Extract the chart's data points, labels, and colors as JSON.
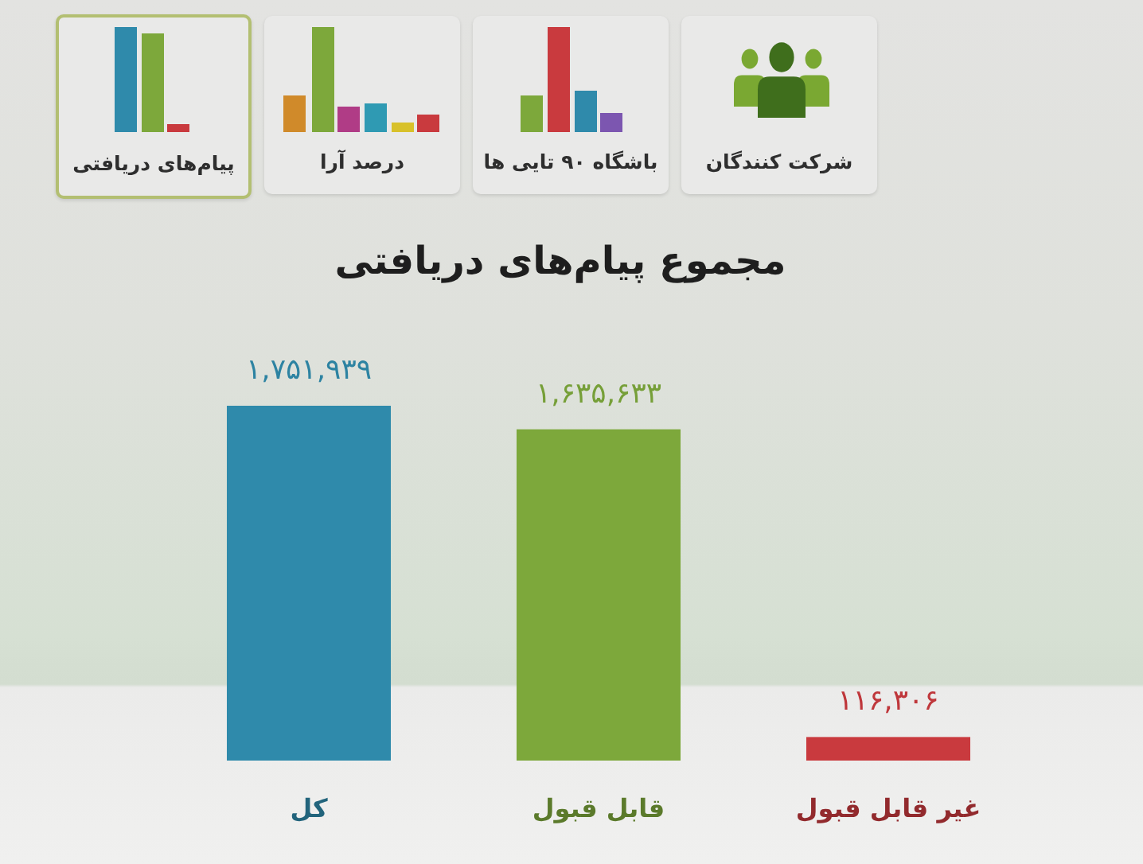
{
  "chart_data": {
    "type": "bar",
    "title": "مجموع پیام‌های دریافتی",
    "categories": [
      "کل",
      "قابل قبول",
      "غیر قابل قبول"
    ],
    "values": [
      1751939,
      1635633,
      116306
    ],
    "colors": [
      "#2f8aab",
      "#7da83b",
      "#c93a3e"
    ],
    "value_labels": [
      "۱,۷۵۱,۹۳۹",
      "۱,۶۳۵,۶۳۳",
      "۱۱۶,۳۰۶"
    ],
    "annotations": [
      "پیام‌های دریافتی",
      "درصد آرا",
      "باشگاه ۹۰ تایی ها",
      "شرکت کنندگان"
    ],
    "tick_labels": "x"
  }
}
